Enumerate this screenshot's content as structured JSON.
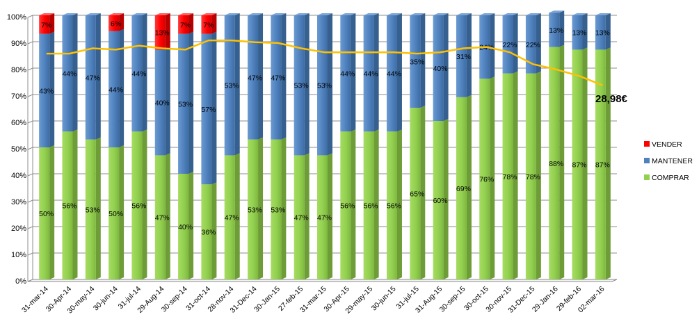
{
  "chart_data": {
    "type": "bar",
    "stacked": true,
    "categories": [
      "31-mar-14",
      "30-Apr-14",
      "30-may-14",
      "30-jun-14",
      "31-jul-14",
      "29-Aug-14",
      "30-sep-14",
      "31-oct-14",
      "28-nov-14",
      "31-Dec-14",
      "30-Jan-15",
      "27-feb-15",
      "31-mar-15",
      "30-Apr-15",
      "29-may-15",
      "30-jun-15",
      "31-jul-15",
      "31-Aug-15",
      "30-sep-15",
      "30-oct-15",
      "30-nov-15",
      "31-Dec-15",
      "29-Jan-16",
      "29-feb-16",
      "02-mar-16"
    ],
    "series": [
      {
        "name": "COMPRAR",
        "color": "#92d050",
        "values": [
          50,
          56,
          53,
          50,
          56,
          47,
          40,
          36,
          47,
          53,
          53,
          47,
          47,
          56,
          56,
          56,
          65,
          60,
          69,
          76,
          78,
          78,
          88,
          87,
          87
        ]
      },
      {
        "name": "MANTENER",
        "color": "#4f81bd",
        "values": [
          43,
          44,
          47,
          44,
          44,
          40,
          53,
          57,
          53,
          47,
          47,
          53,
          53,
          44,
          44,
          44,
          35,
          40,
          31,
          24,
          22,
          22,
          13,
          13,
          13
        ]
      },
      {
        "name": "VENDER",
        "color": "#ff0000",
        "values": [
          7,
          0,
          0,
          6,
          0,
          13,
          7,
          7,
          0,
          0,
          0,
          0,
          0,
          0,
          0,
          0,
          0,
          0,
          0,
          0,
          0,
          0,
          0,
          0,
          0
        ]
      }
    ],
    "line": {
      "color": "#ffc000",
      "values": [
        85.5,
        85.5,
        87.5,
        87,
        88.5,
        87.5,
        87,
        90.5,
        90.5,
        89.8,
        89.5,
        87.5,
        86,
        86,
        86,
        86,
        85.5,
        86,
        87.5,
        88,
        86,
        81.5,
        79.5,
        77,
        73.5
      ]
    },
    "price_annotation": "28,98€",
    "y_ticks": [
      "0%",
      "10%",
      "20%",
      "30%",
      "40%",
      "50%",
      "60%",
      "70%",
      "80%",
      "90%",
      "100%"
    ],
    "ylim": [
      0,
      100
    ],
    "legend_position": "right",
    "grid": true
  }
}
